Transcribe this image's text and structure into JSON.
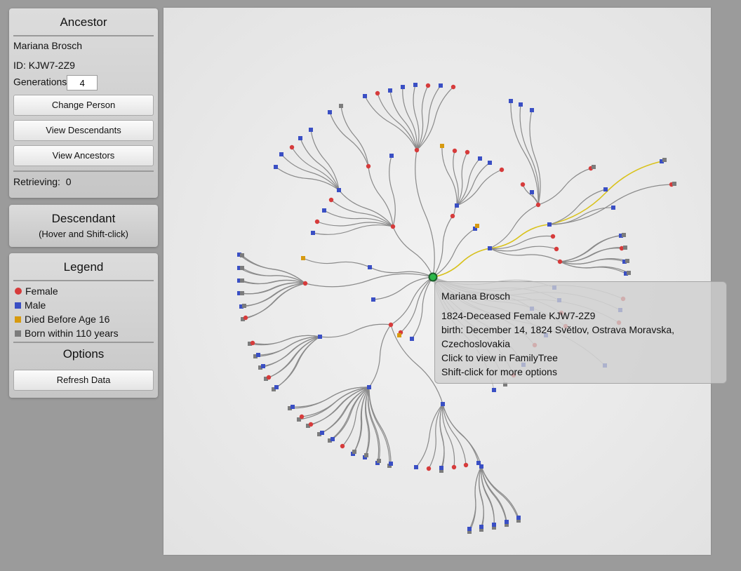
{
  "ancestor": {
    "title": "Ancestor",
    "name": "Mariana Brosch",
    "id_text": "ID: KJW7-2Z9",
    "generations_label": "Generations",
    "generations_value": "4",
    "change_person": "Change Person",
    "view_descendants": "View Descendants",
    "view_ancestors": "View Ancestors",
    "retrieving_label": "Retrieving:",
    "retrieving_count": "0"
  },
  "descendant": {
    "title": "Descendant",
    "hint": "(Hover and Shift-click)"
  },
  "legend": {
    "title": "Legend",
    "items": [
      {
        "label": "Female",
        "color": "#d63b3b",
        "shape": "circle"
      },
      {
        "label": "Male",
        "color": "#3a4fc4",
        "shape": "square"
      },
      {
        "label": "Died Before Age 16",
        "color": "#d79a10",
        "shape": "square"
      },
      {
        "label": "Born within 110 years",
        "color": "#7c7c7c",
        "shape": "square"
      }
    ]
  },
  "options": {
    "title": "Options",
    "refresh": "Refresh Data"
  },
  "tooltip": {
    "name": "Mariana Brosch",
    "line1": "1824-Deceased Female KJW7-2Z9",
    "line2": "birth: December 14, 1824 Světlov, Ostrava Moravska,",
    "line3": "Czechoslovakia",
    "line4": "Click to view in FamilyTree",
    "line5": "Shift-click for more options"
  },
  "colors": {
    "female": "#d63b3b",
    "male": "#3a4fc4",
    "died_young": "#d79a10",
    "living": "#7c7c7c",
    "link": "#8a8a8a",
    "highlight": "#d9c21a",
    "root": "#2db84a"
  }
}
